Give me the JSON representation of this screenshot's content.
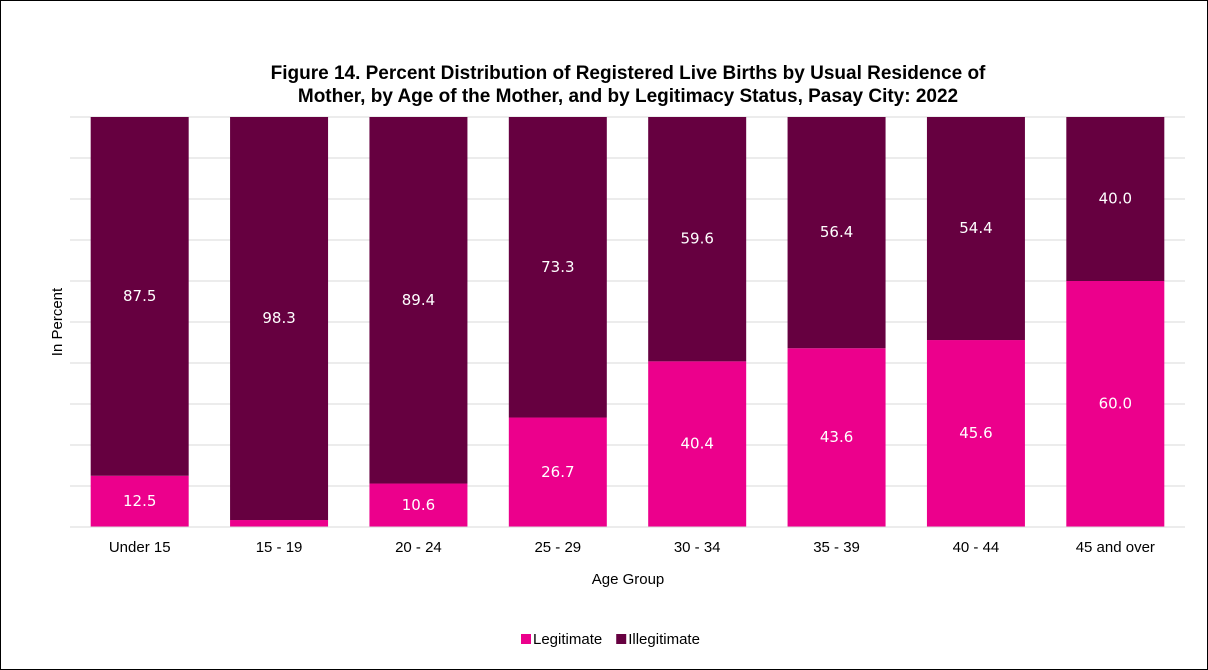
{
  "chart_data": {
    "type": "stacked_bar",
    "title": [
      "Figure 14. Percent Distribution of Registered Live Births by Usual Residence of",
      "Mother, by Age of the Mother, and by Legitimacy Status, Pasay City: 2022"
    ],
    "xlabel": "Age Group",
    "ylabel": "In Percent",
    "categories": [
      "Under 15",
      "15 - 19",
      "20 - 24",
      "25 - 29",
      "30 - 34",
      "35 - 39",
      "40 - 44",
      "45 and over"
    ],
    "series": [
      {
        "name": "Legitimate",
        "color": "#ec008c",
        "values": [
          12.5,
          1.7,
          10.6,
          26.7,
          40.4,
          43.6,
          45.6,
          60
        ],
        "value_labels": [
          "12.5",
          "1.7",
          "10.6",
          "26.7",
          "40.4",
          "43.6",
          "45.6",
          "60.0"
        ]
      },
      {
        "name": "Illegitimate",
        "color": "#660040",
        "values": [
          87.5,
          98.3,
          89.4,
          73.3,
          59.6,
          56.4,
          54.4,
          40
        ],
        "value_labels": [
          "87.5",
          "98.3",
          "89.4",
          "73.3",
          "59.6",
          "56.4",
          "54.4",
          "40.0"
        ]
      }
    ],
    "ylim": [
      0,
      100
    ],
    "yticks": [
      0,
      10,
      20,
      30,
      40,
      50,
      60,
      70,
      80,
      90,
      100
    ],
    "grid": true,
    "legend": "bottom"
  }
}
